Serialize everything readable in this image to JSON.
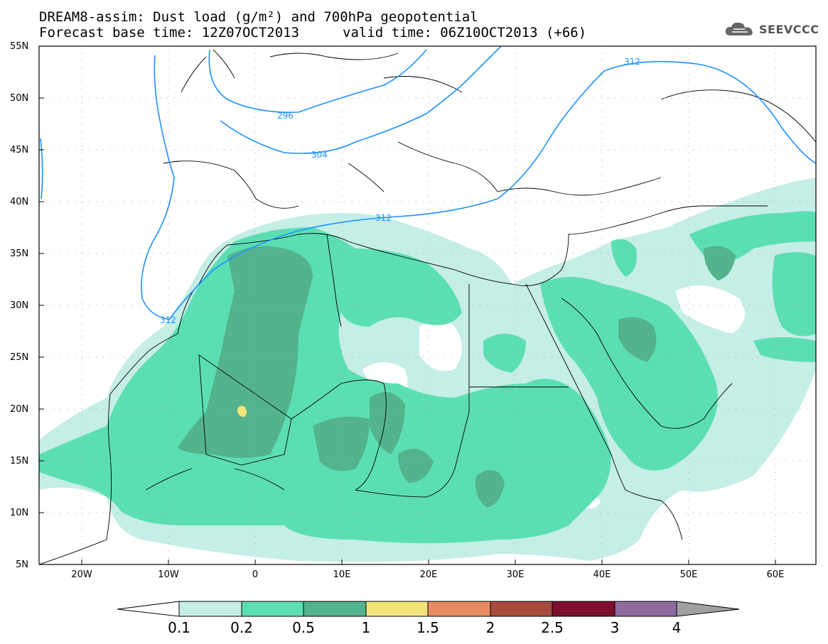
{
  "title": {
    "line1": "DREAM8-assim: Dust load (g/m²) and 700hPa geopotential",
    "line2": "Forecast base time: 12Z07OCT2013",
    "line2b": "valid time: 06Z10OCT2013 (+66)"
  },
  "logo": {
    "text": "SEEVCCC",
    "icon": "cloud-icon"
  },
  "lat_labels": [
    "55N",
    "50N",
    "45N",
    "40N",
    "35N",
    "30N",
    "25N",
    "20N",
    "15N",
    "10N",
    "5N"
  ],
  "lon_labels": [
    "20W",
    "10W",
    "0",
    "10E",
    "20E",
    "30E",
    "40E",
    "50E",
    "60E"
  ],
  "contour_labels": [
    "312",
    "296",
    "304",
    "312",
    "312"
  ],
  "colorbar": {
    "labels": [
      "0.1",
      "0.2",
      "0.5",
      "1",
      "1.5",
      "2",
      "2.5",
      "3",
      "4"
    ],
    "colors": [
      "#c4eee6",
      "#5cdeb3",
      "#52b38c",
      "#f2e67a",
      "#e78a61",
      "#a84a3e",
      "#7e0e2b",
      "#8e6b9e"
    ],
    "under_color": "#ffffff",
    "over_color": "#a0a0a0"
  },
  "colors": {
    "contour": "#1e90ff",
    "land_border": "#000000",
    "dust_light": "#c4eee6",
    "dust_mid": "#5cdeb3",
    "dust_dark": "#52b38c",
    "dust_yellow": "#f2e67a"
  }
}
